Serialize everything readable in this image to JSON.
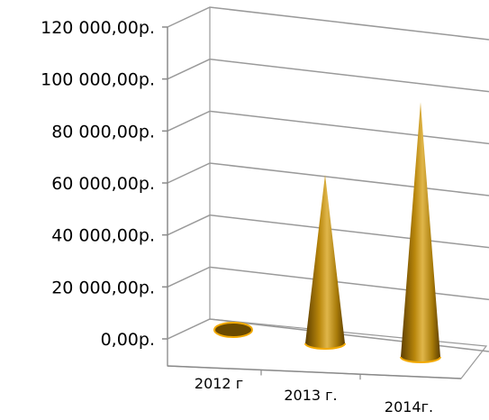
{
  "chart_data": {
    "type": "bar",
    "style": "3d-cone",
    "categories": [
      "2012 г",
      "2013 г.",
      "2014г."
    ],
    "values": [
      0,
      65000,
      98000
    ],
    "ylim": [
      0,
      120000
    ],
    "yticks": [
      "0,00р.",
      "20 000,00р.",
      "40 000,00р.",
      "60 000,00р.",
      "80 000,00р.",
      "100 000,00р.",
      "120 000,00р."
    ],
    "title": "",
    "xlabel": "",
    "ylabel": "",
    "grid": true,
    "legend": "none",
    "colors": {
      "cone_dark": "#6b4a00",
      "cone_light": "#e0b64a",
      "cone_base_rim": "#f2a900",
      "gridline": "#9a9a9a",
      "axis": "#8a8a8a"
    }
  }
}
